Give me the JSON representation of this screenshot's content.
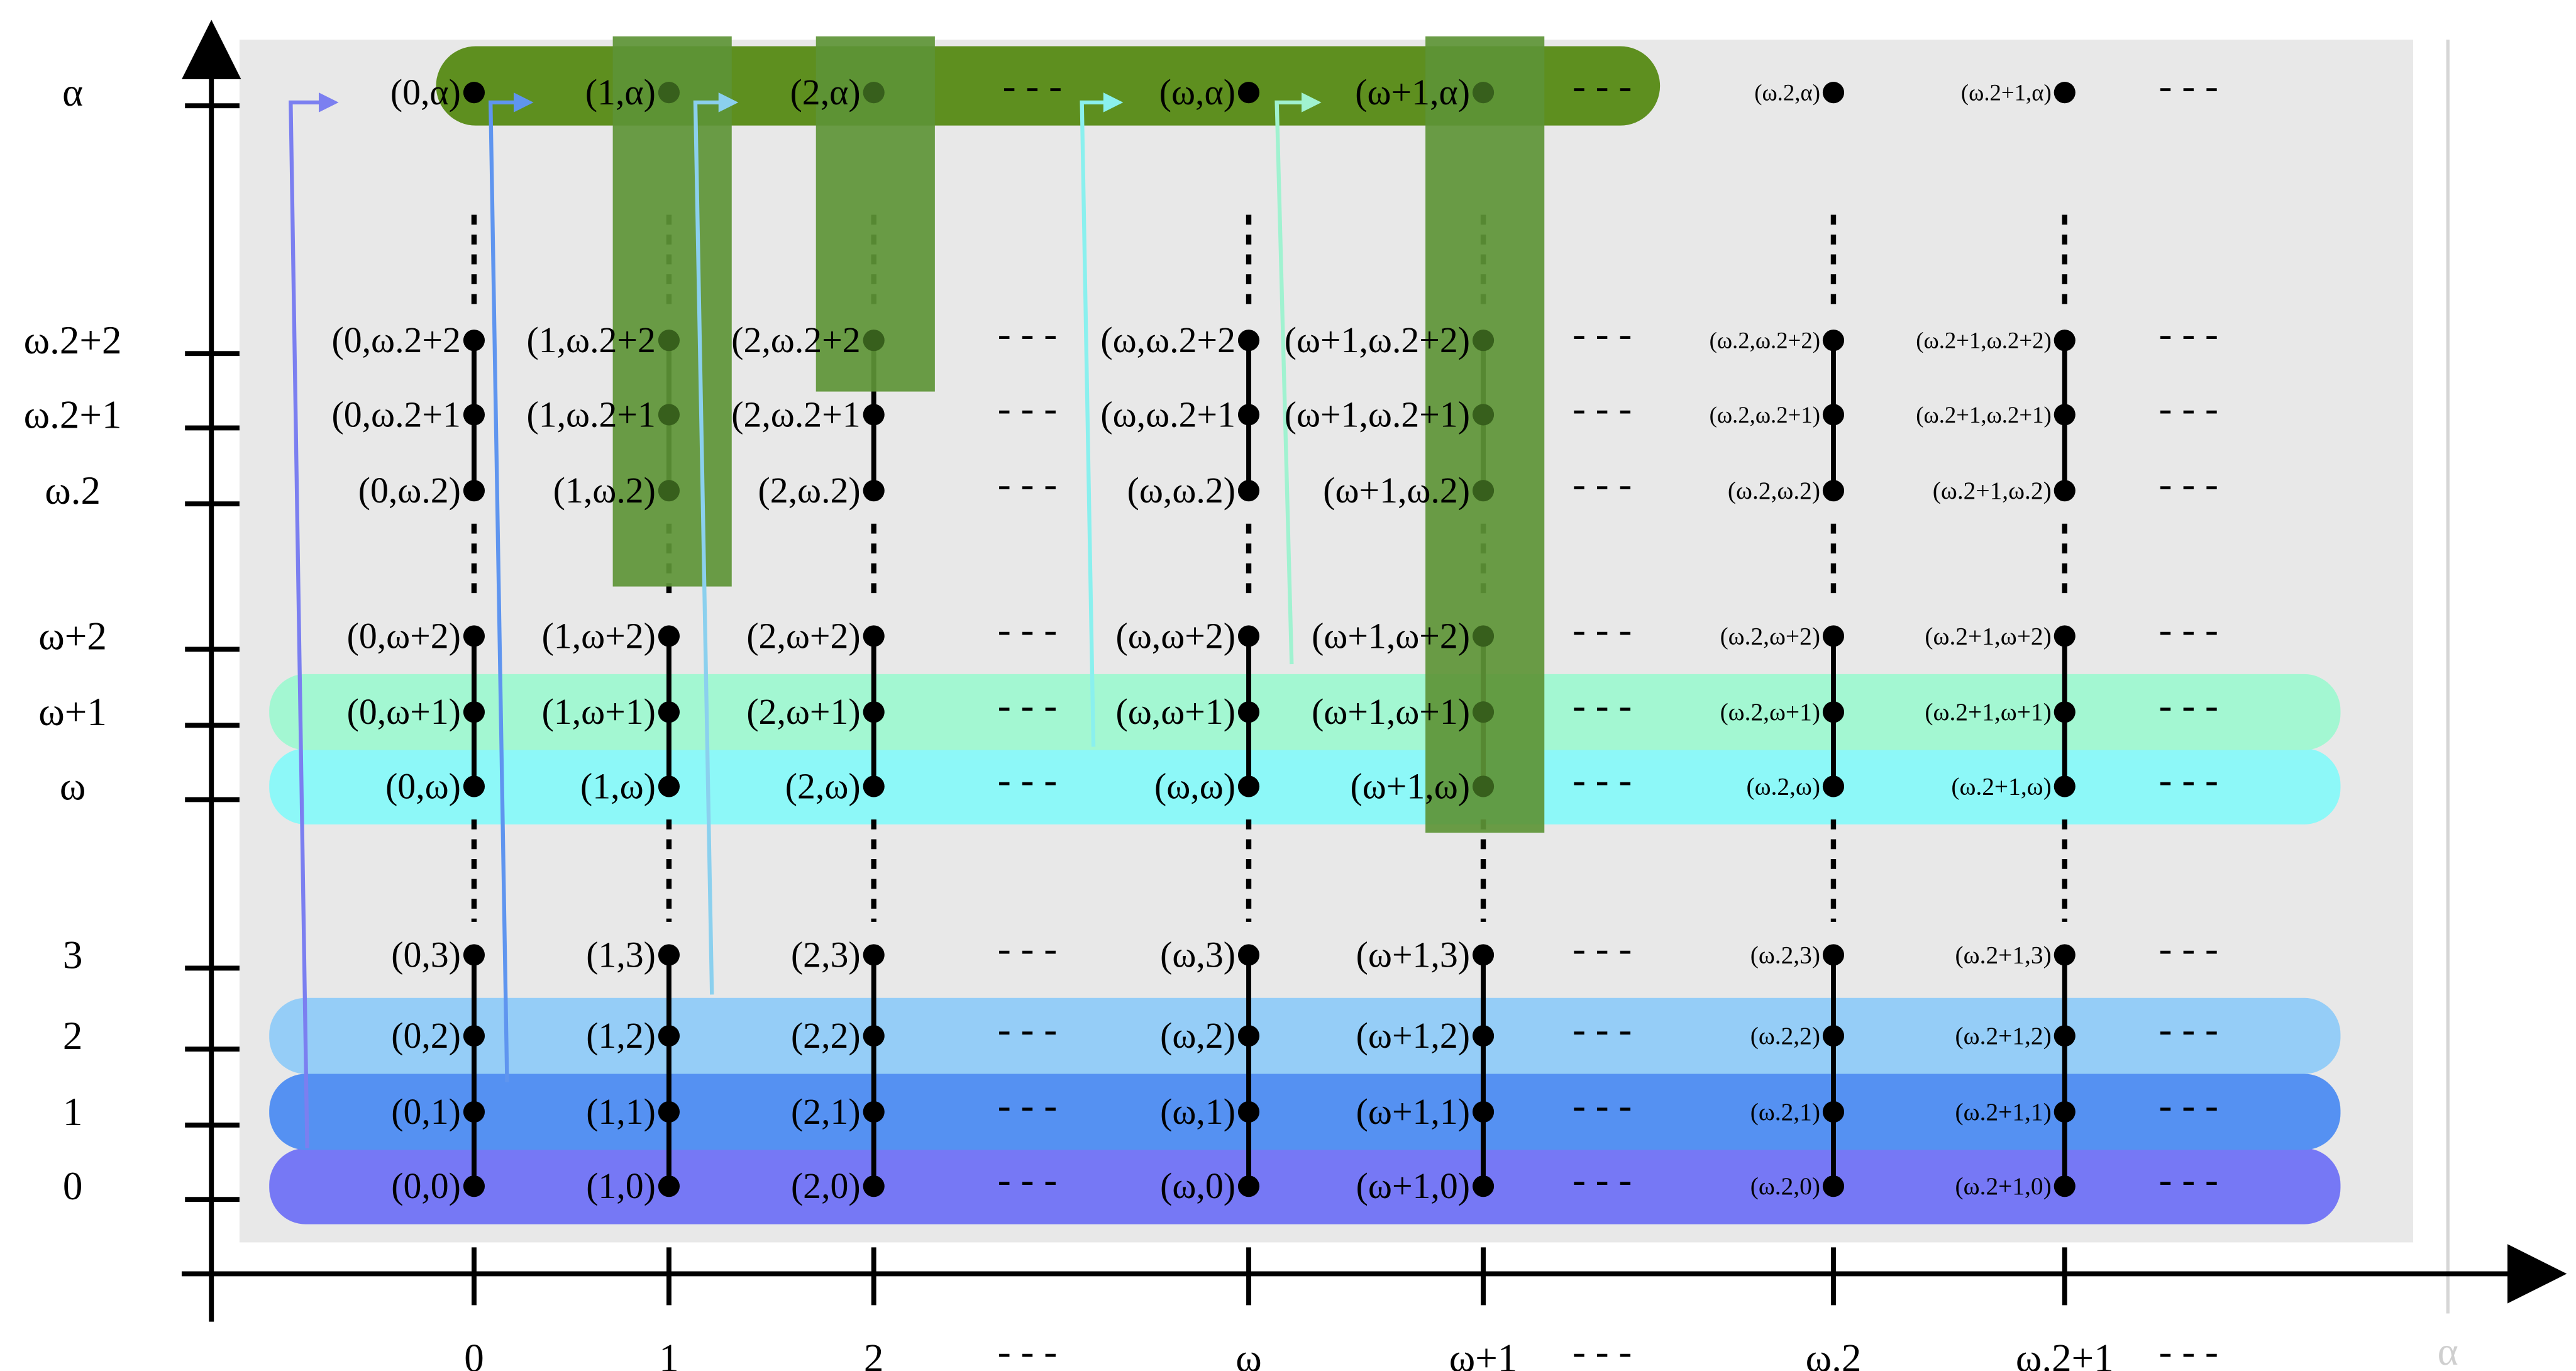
{
  "diagram": {
    "x_axis_labels": [
      "0",
      "1",
      "2",
      "---",
      "ω",
      "ω+1",
      "---",
      "ω.2",
      "ω.2+1",
      "---"
    ],
    "x_axis_end_label": "α",
    "y_axis_labels": [
      "0",
      "1",
      "2",
      "3",
      "ω",
      "ω+1",
      "ω+2",
      "ω.2",
      "ω.2+1",
      "ω.2+2",
      "α"
    ],
    "dash_text": "- - -",
    "columns": [
      "0",
      "1",
      "2",
      "ω",
      "ω+1",
      "ω.2",
      "ω.2+1"
    ],
    "rows": [
      "0",
      "1",
      "2",
      "3",
      "ω",
      "ω+1",
      "ω+2",
      "ω.2",
      "ω.2+1",
      "ω.2+2",
      "α"
    ],
    "pair_labels": [
      [
        "(0,0)",
        "(1,0)",
        "(2,0)",
        "(ω,0)",
        "(ω+1,0)",
        "(ω.2,0)",
        "(ω.2+1,0)"
      ],
      [
        "(0,1)",
        "(1,1)",
        "(2,1)",
        "(ω,1)",
        "(ω+1,1)",
        "(ω.2,1)",
        "(ω.2+1,1)"
      ],
      [
        "(0,2)",
        "(1,2)",
        "(2,2)",
        "(ω,2)",
        "(ω+1,2)",
        "(ω.2,2)",
        "(ω.2+1,2)"
      ],
      [
        "(0,3)",
        "(1,3)",
        "(2,3)",
        "(ω,3)",
        "(ω+1,3)",
        "(ω.2,3)",
        "(ω.2+1,3)"
      ],
      [
        "(0,ω)",
        "(1,ω)",
        "(2,ω)",
        "(ω,ω)",
        "(ω+1,ω)",
        "(ω.2,ω)",
        "(ω.2+1,ω)"
      ],
      [
        "(0,ω+1)",
        "(1,ω+1)",
        "(2,ω+1)",
        "(ω,ω+1)",
        "(ω+1,ω+1)",
        "(ω.2,ω+1)",
        "(ω.2+1,ω+1)"
      ],
      [
        "(0,ω+2)",
        "(1,ω+2)",
        "(2,ω+2)",
        "(ω,ω+2)",
        "(ω+1,ω+2)",
        "(ω.2,ω+2)",
        "(ω.2+1,ω+2)"
      ],
      [
        "(0,ω.2)",
        "(1,ω.2)",
        "(2,ω.2)",
        "(ω,ω.2)",
        "(ω+1,ω.2)",
        "(ω.2,ω.2)",
        "(ω.2+1,ω.2)"
      ],
      [
        "(0,ω.2+1",
        "(1,ω.2+1",
        "(2,ω.2+1",
        "(ω,ω.2+1",
        "(ω+1,ω.2+1)",
        "(ω.2,ω.2+1)",
        "(ω.2+1,ω.2+1)"
      ],
      [
        "(0,ω.2+2",
        "(1,ω.2+2",
        "(2,ω.2+2",
        "(ω,ω.2+2",
        "(ω+1,ω.2+2)",
        "(ω.2,ω.2+2)",
        "(ω.2+1,ω.2+2)"
      ],
      [
        "(0,α)",
        "(1,α)",
        "(2,α)",
        "(ω,α)",
        "(ω+1,α)",
        "(ω.2,α)",
        "(ω.2+1,α)"
      ]
    ],
    "colors": {
      "background_panel": "#e8e8e8",
      "row_0": "#7678f5",
      "row_1": "#5591f2",
      "row_2": "#95cdf7",
      "row_omega": "#8df8f8",
      "row_omega_plus_1": "#a3f7d2",
      "row_alpha": "#5e8f1f",
      "column_highlight": "#5d9436",
      "arrow_0": "#7b7ff0",
      "arrow_1": "#5f95ef",
      "arrow_2": "#8bd0ee",
      "arrow_omega": "#8af0ee",
      "arrow_omega_plus_1": "#a0f2d0"
    }
  }
}
